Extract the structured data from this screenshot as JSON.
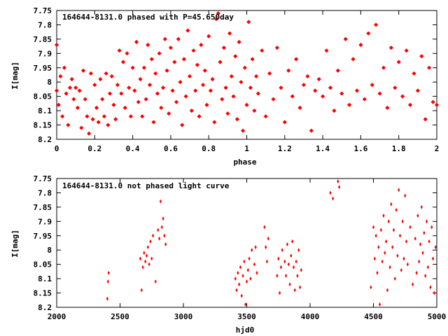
{
  "colors": {
    "points": "#ff0000",
    "axes": "#000000",
    "background": "#ffffff"
  },
  "chart_data": [
    {
      "type": "scatter",
      "title": "164644-8131.0 phased with P=45.650day",
      "xlabel": "phase",
      "ylabel": "I[mag]",
      "xlim": [
        0,
        2
      ],
      "ylim": [
        8.2,
        7.75
      ],
      "y_inverted": true,
      "x_ticks": [
        "0",
        "0.2",
        "0.4",
        "0.6",
        "0.8",
        "1",
        "1.2",
        "1.4",
        "1.6",
        "1.8",
        "2"
      ],
      "y_ticks": [
        "7.75",
        "7.8",
        "7.85",
        "7.9",
        "7.95",
        "8",
        "8.05",
        "8.1",
        "8.15",
        "8.2"
      ],
      "grid": false,
      "marker": "star",
      "series": [
        {
          "points": [
            [
              0.0,
              7.87
            ],
            [
              0.0,
              8.03
            ],
            [
              0.01,
              8.08
            ],
            [
              0.02,
              7.98
            ],
            [
              0.03,
              8.12
            ],
            [
              0.04,
              7.95
            ],
            [
              0.05,
              8.04
            ],
            [
              0.06,
              8.15
            ],
            [
              0.07,
              8.02
            ],
            [
              0.08,
              7.99
            ],
            [
              0.09,
              8.06
            ],
            [
              0.1,
              8.02
            ],
            [
              0.11,
              8.09
            ],
            [
              0.12,
              8.03
            ],
            [
              0.13,
              8.16
            ],
            [
              0.14,
              7.96
            ],
            [
              0.15,
              8.06
            ],
            [
              0.16,
              8.12
            ],
            [
              0.17,
              8.18
            ],
            [
              0.18,
              7.97
            ],
            [
              0.19,
              8.13
            ],
            [
              0.2,
              8.01
            ],
            [
              0.21,
              8.09
            ],
            [
              0.22,
              8.14
            ],
            [
              0.23,
              7.99
            ],
            [
              0.24,
              8.06
            ],
            [
              0.25,
              8.12
            ],
            [
              0.26,
              7.97
            ],
            [
              0.27,
              8.15
            ],
            [
              0.28,
              8.04
            ],
            [
              0.29,
              7.98
            ],
            [
              0.3,
              8.08
            ],
            [
              0.31,
              8.13
            ],
            [
              0.32,
              8.01
            ],
            [
              0.33,
              7.89
            ],
            [
              0.34,
              8.04
            ],
            [
              0.35,
              7.93
            ],
            [
              0.36,
              8.09
            ],
            [
              0.37,
              7.9
            ],
            [
              0.38,
              8.02
            ],
            [
              0.39,
              8.12
            ],
            [
              0.4,
              7.95
            ],
            [
              0.41,
              8.03
            ],
            [
              0.42,
              7.86
            ],
            [
              0.43,
              8.07
            ],
            [
              0.44,
              7.99
            ],
            [
              0.45,
              8.12
            ],
            [
              0.46,
              7.95
            ],
            [
              0.47,
              8.06
            ],
            [
              0.48,
              7.87
            ],
            [
              0.49,
              8.01
            ],
            [
              0.5,
              7.92
            ],
            [
              0.51,
              8.14
            ],
            [
              0.52,
              7.97
            ],
            [
              0.53,
              8.04
            ],
            [
              0.54,
              7.9
            ],
            [
              0.55,
              8.09
            ],
            [
              0.56,
              8.02
            ],
            [
              0.57,
              7.85
            ],
            [
              0.58,
              7.96
            ],
            [
              0.59,
              8.11
            ],
            [
              0.6,
              7.88
            ],
            [
              0.61,
              8.03
            ],
            [
              0.62,
              7.93
            ],
            [
              0.63,
              8.07
            ],
            [
              0.64,
              7.85
            ],
            [
              0.65,
              8.0
            ],
            [
              0.66,
              8.15
            ],
            [
              0.67,
              7.92
            ],
            [
              0.68,
              8.05
            ],
            [
              0.69,
              7.82
            ],
            [
              0.7,
              7.98
            ],
            [
              0.71,
              8.1
            ],
            [
              0.72,
              7.89
            ],
            [
              0.73,
              8.03
            ],
            [
              0.74,
              7.94
            ],
            [
              0.75,
              8.12
            ],
            [
              0.76,
              7.87
            ],
            [
              0.77,
              8.01
            ],
            [
              0.78,
              7.96
            ],
            [
              0.79,
              8.08
            ],
            [
              0.8,
              7.84
            ],
            [
              0.81,
              8.03
            ],
            [
              0.82,
              7.99
            ],
            [
              0.83,
              8.14
            ],
            [
              0.84,
              7.78
            ],
            [
              0.85,
              7.76
            ],
            [
              0.86,
              7.93
            ],
            [
              0.87,
              8.06
            ],
            [
              0.88,
              7.88
            ],
            [
              0.89,
              8.02
            ],
            [
              0.9,
              8.11
            ],
            [
              0.91,
              7.83
            ],
            [
              0.92,
              7.98
            ],
            [
              0.93,
              8.05
            ],
            [
              0.94,
              7.91
            ],
            [
              0.95,
              8.13
            ],
            [
              0.96,
              7.86
            ],
            [
              0.97,
              8.0
            ],
            [
              0.98,
              8.17
            ],
            [
              0.99,
              7.95
            ],
            [
              1.0,
              8.08
            ],
            [
              1.01,
              7.79
            ],
            [
              1.02,
              8.02
            ],
            [
              1.03,
              7.92
            ],
            [
              1.04,
              8.1
            ],
            [
              1.05,
              7.98
            ],
            [
              1.06,
              8.04
            ],
            [
              1.08,
              7.89
            ],
            [
              1.1,
              8.12
            ],
            [
              1.12,
              7.97
            ],
            [
              1.14,
              8.06
            ],
            [
              1.16,
              7.88
            ],
            [
              1.18,
              8.02
            ],
            [
              1.2,
              8.14
            ],
            [
              1.22,
              7.96
            ],
            [
              1.24,
              8.05
            ],
            [
              1.26,
              7.92
            ],
            [
              1.28,
              8.09
            ],
            [
              1.3,
              8.01
            ],
            [
              1.32,
              7.98
            ],
            [
              1.34,
              8.17
            ],
            [
              1.36,
              8.03
            ],
            [
              1.38,
              7.99
            ],
            [
              1.4,
              8.05
            ],
            [
              1.42,
              7.89
            ],
            [
              1.44,
              8.02
            ],
            [
              1.46,
              8.1
            ],
            [
              1.48,
              7.96
            ],
            [
              1.5,
              8.04
            ],
            [
              1.52,
              7.85
            ],
            [
              1.54,
              8.08
            ],
            [
              1.56,
              7.92
            ],
            [
              1.58,
              8.03
            ],
            [
              1.6,
              7.87
            ],
            [
              1.62,
              8.06
            ],
            [
              1.64,
              7.83
            ],
            [
              1.66,
              8.01
            ],
            [
              1.68,
              7.8
            ],
            [
              1.7,
              8.04
            ],
            [
              1.72,
              7.95
            ],
            [
              1.74,
              8.09
            ],
            [
              1.76,
              7.88
            ],
            [
              1.78,
              8.02
            ],
            [
              1.8,
              7.93
            ],
            [
              1.82,
              8.05
            ],
            [
              1.84,
              7.89
            ],
            [
              1.86,
              8.08
            ],
            [
              1.88,
              7.97
            ],
            [
              1.9,
              8.03
            ],
            [
              1.92,
              7.91
            ],
            [
              1.94,
              8.13
            ],
            [
              1.96,
              7.95
            ],
            [
              1.98,
              8.07
            ],
            [
              2.0,
              8.08
            ]
          ]
        }
      ]
    },
    {
      "type": "scatter",
      "title": "164644-8131.0 not phased light curve",
      "xlabel": "hjd0",
      "ylabel": "I[mag]",
      "xlim": [
        2000,
        5000
      ],
      "ylim": [
        8.2,
        7.75
      ],
      "y_inverted": true,
      "x_ticks": [
        "2000",
        "2500",
        "3000",
        "3500",
        "4000",
        "4500",
        "5000"
      ],
      "y_ticks": [
        "7.75",
        "7.8",
        "7.85",
        "7.9",
        "7.95",
        "8",
        "8.05",
        "8.1",
        "8.15",
        "8.2"
      ],
      "grid": false,
      "marker": "diamond",
      "series": [
        {
          "points": [
            [
              2400,
              8.17
            ],
            [
              2405,
              8.11
            ],
            [
              2410,
              8.08
            ],
            [
              2660,
              8.03
            ],
            [
              2670,
              8.14
            ],
            [
              2680,
              8.06
            ],
            [
              2690,
              8.01
            ],
            [
              2700,
              8.04
            ],
            [
              2710,
              8.02
            ],
            [
              2720,
              7.99
            ],
            [
              2730,
              8.05
            ],
            [
              2740,
              7.97
            ],
            [
              2750,
              8.03
            ],
            [
              2760,
              7.95
            ],
            [
              2780,
              8.11
            ],
            [
              2800,
              7.93
            ],
            [
              2810,
              7.96
            ],
            [
              2820,
              7.83
            ],
            [
              2830,
              7.92
            ],
            [
              2840,
              7.89
            ],
            [
              2850,
              7.95
            ],
            [
              2860,
              7.98
            ],
            [
              3410,
              8.1
            ],
            [
              3420,
              8.14
            ],
            [
              3430,
              8.08
            ],
            [
              3440,
              8.12
            ],
            [
              3450,
              8.06
            ],
            [
              3460,
              8.16
            ],
            [
              3470,
              8.09
            ],
            [
              3480,
              8.04
            ],
            [
              3490,
              8.19
            ],
            [
              3500,
              8.11
            ],
            [
              3510,
              8.07
            ],
            [
              3520,
              8.03
            ],
            [
              3530,
              8.1
            ],
            [
              3540,
              8.0
            ],
            [
              3560,
              8.05
            ],
            [
              3570,
              7.99
            ],
            [
              3580,
              8.08
            ],
            [
              3640,
              7.92
            ],
            [
              3650,
              7.99
            ],
            [
              3660,
              8.04
            ],
            [
              3670,
              7.96
            ],
            [
              3740,
              8.09
            ],
            [
              3750,
              8.03
            ],
            [
              3760,
              8.15
            ],
            [
              3770,
              8.06
            ],
            [
              3780,
              8.0
            ],
            [
              3800,
              8.04
            ],
            [
              3810,
              8.09
            ],
            [
              3820,
              7.98
            ],
            [
              3830,
              8.05
            ],
            [
              3840,
              8.12
            ],
            [
              3850,
              8.02
            ],
            [
              3860,
              7.97
            ],
            [
              3870,
              8.06
            ],
            [
              3880,
              8.14
            ],
            [
              3890,
              8.04
            ],
            [
              3900,
              8.09
            ],
            [
              3910,
              8.0
            ],
            [
              3920,
              8.13
            ],
            [
              3930,
              8.07
            ],
            [
              4160,
              7.8
            ],
            [
              4180,
              7.82
            ],
            [
              4220,
              7.76
            ],
            [
              4230,
              7.78
            ],
            [
              4480,
              8.13
            ],
            [
              4500,
              7.92
            ],
            [
              4510,
              8.03
            ],
            [
              4520,
              7.95
            ],
            [
              4530,
              8.08
            ],
            [
              4540,
              7.99
            ],
            [
              4550,
              8.19
            ],
            [
              4560,
              7.93
            ],
            [
              4570,
              8.04
            ],
            [
              4580,
              7.88
            ],
            [
              4590,
              8.01
            ],
            [
              4600,
              7.97
            ],
            [
              4610,
              8.14
            ],
            [
              4620,
              7.9
            ],
            [
              4630,
              8.06
            ],
            [
              4640,
              7.84
            ],
            [
              4650,
              7.99
            ],
            [
              4660,
              7.93
            ],
            [
              4670,
              8.1
            ],
            [
              4680,
              7.86
            ],
            [
              4690,
              8.02
            ],
            [
              4700,
              7.79
            ],
            [
              4710,
              7.95
            ],
            [
              4720,
              8.07
            ],
            [
              4730,
              7.9
            ],
            [
              4740,
              8.03
            ],
            [
              4750,
              7.81
            ],
            [
              4760,
              7.97
            ],
            [
              4770,
              8.05
            ],
            [
              4790,
              7.92
            ],
            [
              4810,
              8.12
            ],
            [
              4830,
              7.96
            ],
            [
              4840,
              8.08
            ],
            [
              4850,
              7.88
            ],
            [
              4860,
              8.04
            ],
            [
              4870,
              7.98
            ],
            [
              4880,
              7.85
            ],
            [
              4890,
              8.01
            ],
            [
              4900,
              7.94
            ],
            [
              4910,
              8.09
            ],
            [
              4920,
              7.9
            ],
            [
              4930,
              8.06
            ],
            [
              4940,
              7.97
            ],
            [
              4950,
              8.13
            ],
            [
              4960,
              7.92
            ],
            [
              4970,
              8.03
            ],
            [
              4980,
              8.15
            ],
            [
              4990,
              7.99
            ]
          ]
        }
      ]
    }
  ]
}
